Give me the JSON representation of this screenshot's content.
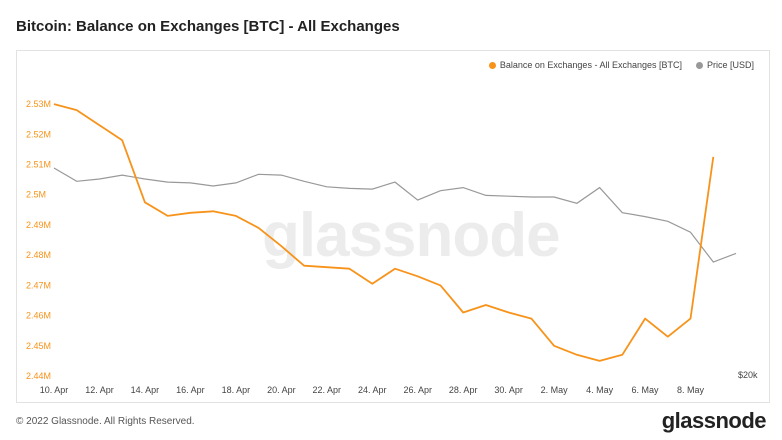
{
  "title": "Bitcoin: Balance on Exchanges [BTC] - All Exchanges",
  "footer": "© 2022 Glassnode. All Rights Reserved.",
  "logo": "glassnode",
  "watermark": "glassnode",
  "colors": {
    "balance": "#f7931a",
    "price": "#999999",
    "axis_text": "#f7931a"
  },
  "chart_data": {
    "type": "line",
    "legend": [
      "Balance on Exchanges - All Exchanges [BTC]",
      "Price [USD]"
    ],
    "legend_position": "top-right",
    "grid": false,
    "x_tick_labels": [
      "10. Apr",
      "12. Apr",
      "14. Apr",
      "16. Apr",
      "18. Apr",
      "20. Apr",
      "22. Apr",
      "24. Apr",
      "26. Apr",
      "28. Apr",
      "30. Apr",
      "2. May",
      "4. May",
      "6. May",
      "8. May"
    ],
    "y_tick_labels": [
      "2.44M",
      "2.45M",
      "2.46M",
      "2.47M",
      "2.48M",
      "2.49M",
      "2.5M",
      "2.51M",
      "2.52M",
      "2.53M"
    ],
    "y_ticks": [
      2440000,
      2450000,
      2460000,
      2470000,
      2480000,
      2490000,
      2500000,
      2510000,
      2520000,
      2530000
    ],
    "ylim": [
      2440000,
      2533000
    ],
    "right_axis_label": "$20k",
    "x": [
      "10. Apr",
      "11. Apr",
      "12. Apr",
      "13. Apr",
      "14. Apr",
      "15. Apr",
      "16. Apr",
      "17. Apr",
      "18. Apr",
      "19. Apr",
      "20. Apr",
      "21. Apr",
      "22. Apr",
      "23. Apr",
      "24. Apr",
      "25. Apr",
      "26. Apr",
      "27. Apr",
      "28. Apr",
      "29. Apr",
      "30. Apr",
      "1. May",
      "2. May",
      "3. May",
      "4. May",
      "5. May",
      "6. May",
      "7. May",
      "8. May",
      "9. May",
      "10. May"
    ],
    "series": [
      {
        "name": "Balance on Exchanges - All Exchanges [BTC]",
        "values": [
          2530000,
          2528000,
          2523000,
          2518000,
          2497500,
          2493000,
          2494000,
          2494500,
          2493000,
          2489000,
          2483000,
          2476500,
          2476000,
          2475500,
          2470500,
          2475500,
          2473000,
          2470000,
          2461000,
          2463500,
          2461000,
          2459000,
          2450000,
          2447000,
          2445000,
          2447000,
          2459000,
          2453000,
          2459000,
          2512500,
          null
        ]
      },
      {
        "name": "Price [USD]",
        "values": [
          42200,
          40500,
          40800,
          41300,
          40800,
          40400,
          40300,
          39900,
          40300,
          41400,
          41300,
          40500,
          39800,
          39600,
          39500,
          40400,
          38100,
          39300,
          39700,
          38700,
          38600,
          38500,
          38500,
          37700,
          39700,
          36500,
          36000,
          35400,
          34000,
          30200,
          31300
        ]
      }
    ],
    "price_range": [
      30200,
      42200
    ]
  }
}
